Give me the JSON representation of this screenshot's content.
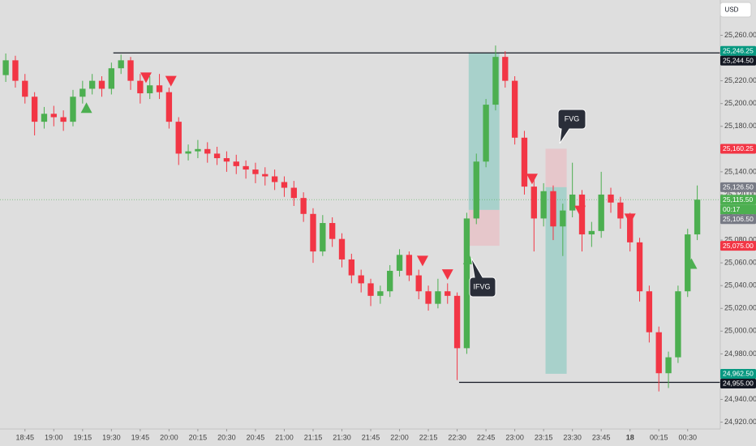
{
  "chart_data": {
    "type": "candlestick",
    "currency": "USD",
    "x": [
      "18:35",
      "18:40",
      "18:45",
      "18:50",
      "18:55",
      "19:00",
      "19:05",
      "19:10",
      "19:15",
      "19:20",
      "19:25",
      "19:30",
      "19:35",
      "19:40",
      "19:45",
      "19:50",
      "19:55",
      "20:00",
      "20:05",
      "20:10",
      "20:15",
      "20:20",
      "20:25",
      "20:30",
      "20:35",
      "20:40",
      "20:45",
      "20:50",
      "20:55",
      "21:00",
      "21:05",
      "21:10",
      "21:15",
      "21:20",
      "21:25",
      "21:30",
      "21:35",
      "21:40",
      "21:45",
      "21:50",
      "21:55",
      "22:00",
      "22:05",
      "22:10",
      "22:15",
      "22:20",
      "22:25",
      "22:30",
      "22:35",
      "22:40",
      "22:45",
      "22:50",
      "22:55",
      "23:00",
      "23:05",
      "23:10",
      "23:15",
      "23:20",
      "23:25",
      "23:30",
      "23:35",
      "23:40",
      "23:45",
      "23:50",
      "23:55",
      "00:00",
      "00:05",
      "00:10",
      "00:15",
      "00:20",
      "00:25",
      "00:30",
      "00:35"
    ],
    "open": [
      25225,
      25238,
      25220,
      25206,
      25184,
      25191,
      25188,
      25184,
      25206,
      25213,
      25220,
      25213,
      25231,
      25238,
      25220,
      25209,
      25216,
      25210,
      25184,
      25156,
      25158,
      25160,
      25156,
      25152,
      25149,
      25145,
      25142,
      25138,
      25136,
      25131,
      25126,
      25117,
      25103,
      25070,
      25095,
      25081,
      25063,
      25049,
      25042,
      25031,
      25035,
      25053,
      25067,
      25049,
      25035,
      25024,
      25035,
      25031,
      24985,
      25099,
      25149,
      25199,
      25241,
      25220,
      25170,
      25127,
      25099,
      25123,
      25092,
      25106,
      25120,
      25085,
      25088,
      25120,
      25113,
      25099,
      25078,
      25035,
      24999,
      24963,
      24977,
      25035,
      25085
    ],
    "high": [
      25244,
      25242,
      25226,
      25210,
      25197,
      25198,
      25194,
      25212,
      25220,
      25226,
      25224,
      25236,
      25243,
      25241,
      25226,
      25224,
      25226,
      25214,
      25188,
      25164,
      25168,
      25166,
      25162,
      25158,
      25155,
      25150,
      25148,
      25144,
      25142,
      25136,
      25132,
      25122,
      25108,
      25102,
      25100,
      25086,
      25068,
      25054,
      25046,
      25040,
      25058,
      25072,
      25070,
      25054,
      25040,
      25046,
      25042,
      25034,
      25104,
      25156,
      25204,
      25251,
      25246,
      25224,
      25176,
      25134,
      25130,
      25128,
      25112,
      25148,
      25124,
      25096,
      25140,
      25126,
      25118,
      25104,
      25082,
      25040,
      25004,
      24982,
      25040,
      25090,
      25128
    ],
    "low": [
      25219,
      25214,
      25200,
      25172,
      25178,
      25180,
      25176,
      25180,
      25200,
      25208,
      25206,
      25208,
      25226,
      25212,
      25200,
      25204,
      25204,
      25178,
      25146,
      25150,
      25152,
      25148,
      25146,
      25140,
      25138,
      25134,
      25130,
      25128,
      25124,
      25118,
      25110,
      25096,
      25060,
      25066,
      25074,
      25056,
      25042,
      25034,
      25022,
      25024,
      25030,
      25048,
      25044,
      25028,
      25018,
      25020,
      25024,
      24957,
      24980,
      25094,
      25144,
      25194,
      25214,
      25164,
      25120,
      25070,
      25092,
      25080,
      25066,
      25100,
      25070,
      25074,
      25082,
      25104,
      25090,
      25070,
      25026,
      24990,
      24947,
      24950,
      24972,
      25030,
      25080
    ],
    "close": [
      25238,
      25220,
      25206,
      25184,
      25191,
      25188,
      25184,
      25206,
      25213,
      25220,
      25213,
      25231,
      25238,
      25220,
      25209,
      25216,
      25210,
      25184,
      25156,
      25158,
      25160,
      25156,
      25152,
      25149,
      25145,
      25142,
      25138,
      25136,
      25131,
      25126,
      25117,
      25103,
      25070,
      25095,
      25081,
      25063,
      25049,
      25042,
      25031,
      25035,
      25053,
      25067,
      25049,
      25035,
      25024,
      25035,
      25031,
      24985,
      25099,
      25149,
      25199,
      25241,
      25220,
      25170,
      25127,
      25099,
      25123,
      25092,
      25106,
      25120,
      25085,
      25088,
      25120,
      25113,
      25099,
      25078,
      25035,
      24999,
      24963,
      24977,
      25035,
      25085,
      25115.5
    ],
    "up_color": "#4caf50",
    "down_color": "#f23645",
    "xlim": [
      "18:32",
      "00:47"
    ],
    "xticks": [
      "18:45",
      "19:00",
      "19:15",
      "19:30",
      "19:45",
      "20:00",
      "20:15",
      "20:30",
      "20:45",
      "21:00",
      "21:15",
      "21:30",
      "21:45",
      "22:00",
      "22:15",
      "22:30",
      "22:45",
      "23:00",
      "23:15",
      "23:30",
      "23:45",
      {
        "value": "00:00",
        "label": "18"
      },
      "00:15",
      "00:30"
    ],
    "ylim": [
      24914,
      25291
    ],
    "yticks": [
      {
        "value": 24920,
        "label": "24,920.00"
      },
      {
        "value": 24940,
        "label": "24,940.00"
      },
      {
        "value": 24960,
        "label": "24,960.00"
      },
      {
        "value": 24980,
        "label": "24,980.00"
      },
      {
        "value": 25000,
        "label": "25,000.00"
      },
      {
        "value": 25020,
        "label": "25,020.00"
      },
      {
        "value": 25040,
        "label": "25,040.00"
      },
      {
        "value": 25060,
        "label": "25,060.00"
      },
      {
        "value": 25080,
        "label": "25,080.00"
      },
      {
        "value": 25100,
        "label": "25,100.00"
      },
      {
        "value": 25120,
        "label": "25,120.00"
      },
      {
        "value": 25140,
        "label": "25,140.00"
      },
      {
        "value": 25160,
        "label": "25,160.00"
      },
      {
        "value": 25180,
        "label": "25,180.00"
      },
      {
        "value": 25200,
        "label": "25,200.00"
      },
      {
        "value": 25220,
        "label": "25,220.00"
      },
      {
        "value": 25240,
        "label": "25,240.00"
      },
      {
        "value": 25260,
        "label": "25,260.00"
      }
    ],
    "levels": [
      {
        "value": 25244.5,
        "from": "19:31"
      },
      {
        "value": 24955,
        "from": "22:31"
      }
    ],
    "zones": [
      {
        "x": [
          "22:36",
          "22:52"
        ],
        "y": [
          25106.5,
          25244.5
        ],
        "color": "#9fcfc8"
      },
      {
        "x": [
          "22:36",
          "22:52"
        ],
        "y": [
          25075,
          25106.5
        ],
        "color": "#e8c3c8"
      },
      {
        "x": [
          "23:16",
          "23:27"
        ],
        "y": [
          25126.5,
          25160.25
        ],
        "color": "#e8c3c8"
      },
      {
        "x": [
          "23:16",
          "23:27"
        ],
        "y": [
          24962.5,
          25126.5
        ],
        "color": "#9fcfc8"
      }
    ],
    "signals": [
      {
        "x": "19:17",
        "price": 25196,
        "direction": "up"
      },
      {
        "x": "19:48",
        "price": 25223,
        "direction": "down"
      },
      {
        "x": "20:01",
        "price": 25220,
        "direction": "down"
      },
      {
        "x": "22:12",
        "price": 25062,
        "direction": "down"
      },
      {
        "x": "22:25",
        "price": 25050,
        "direction": "down"
      },
      {
        "x": "22:36",
        "price": 25063,
        "direction": "up"
      },
      {
        "x": "23:09",
        "price": 25134,
        "direction": "down"
      },
      {
        "x": "23:34",
        "price": 25106,
        "direction": "down"
      },
      {
        "x": "00:00",
        "price": 25099,
        "direction": "down"
      },
      {
        "x": "00:32",
        "price": 25059,
        "direction": "up"
      }
    ],
    "current_price": 25115.5,
    "price_labels": [
      {
        "value": 25246.25,
        "label": "25,246.25",
        "color": "#089981"
      },
      {
        "value": 25244.5,
        "label": "25,244.50",
        "color": "#131722"
      },
      {
        "value": 25160.25,
        "label": "25,160.25",
        "color": "#f23645"
      },
      {
        "value": 25126.5,
        "label": "25,126.50",
        "color": "#787b86"
      },
      {
        "value": 25115.5,
        "label": "25,115.50",
        "color": "#4caf50",
        "countdown": "00:17"
      },
      {
        "value": 25106.5,
        "label": "25,106.50",
        "color": "#787b86"
      },
      {
        "value": 25075,
        "label": "25,075.00",
        "color": "#f23645"
      },
      {
        "value": 24962.5,
        "label": "24,962.50",
        "color": "#089981"
      },
      {
        "value": 24955,
        "label": "24,955.00",
        "color": "#131722"
      }
    ],
    "annotations": [
      "FVG",
      "IFVG"
    ]
  }
}
